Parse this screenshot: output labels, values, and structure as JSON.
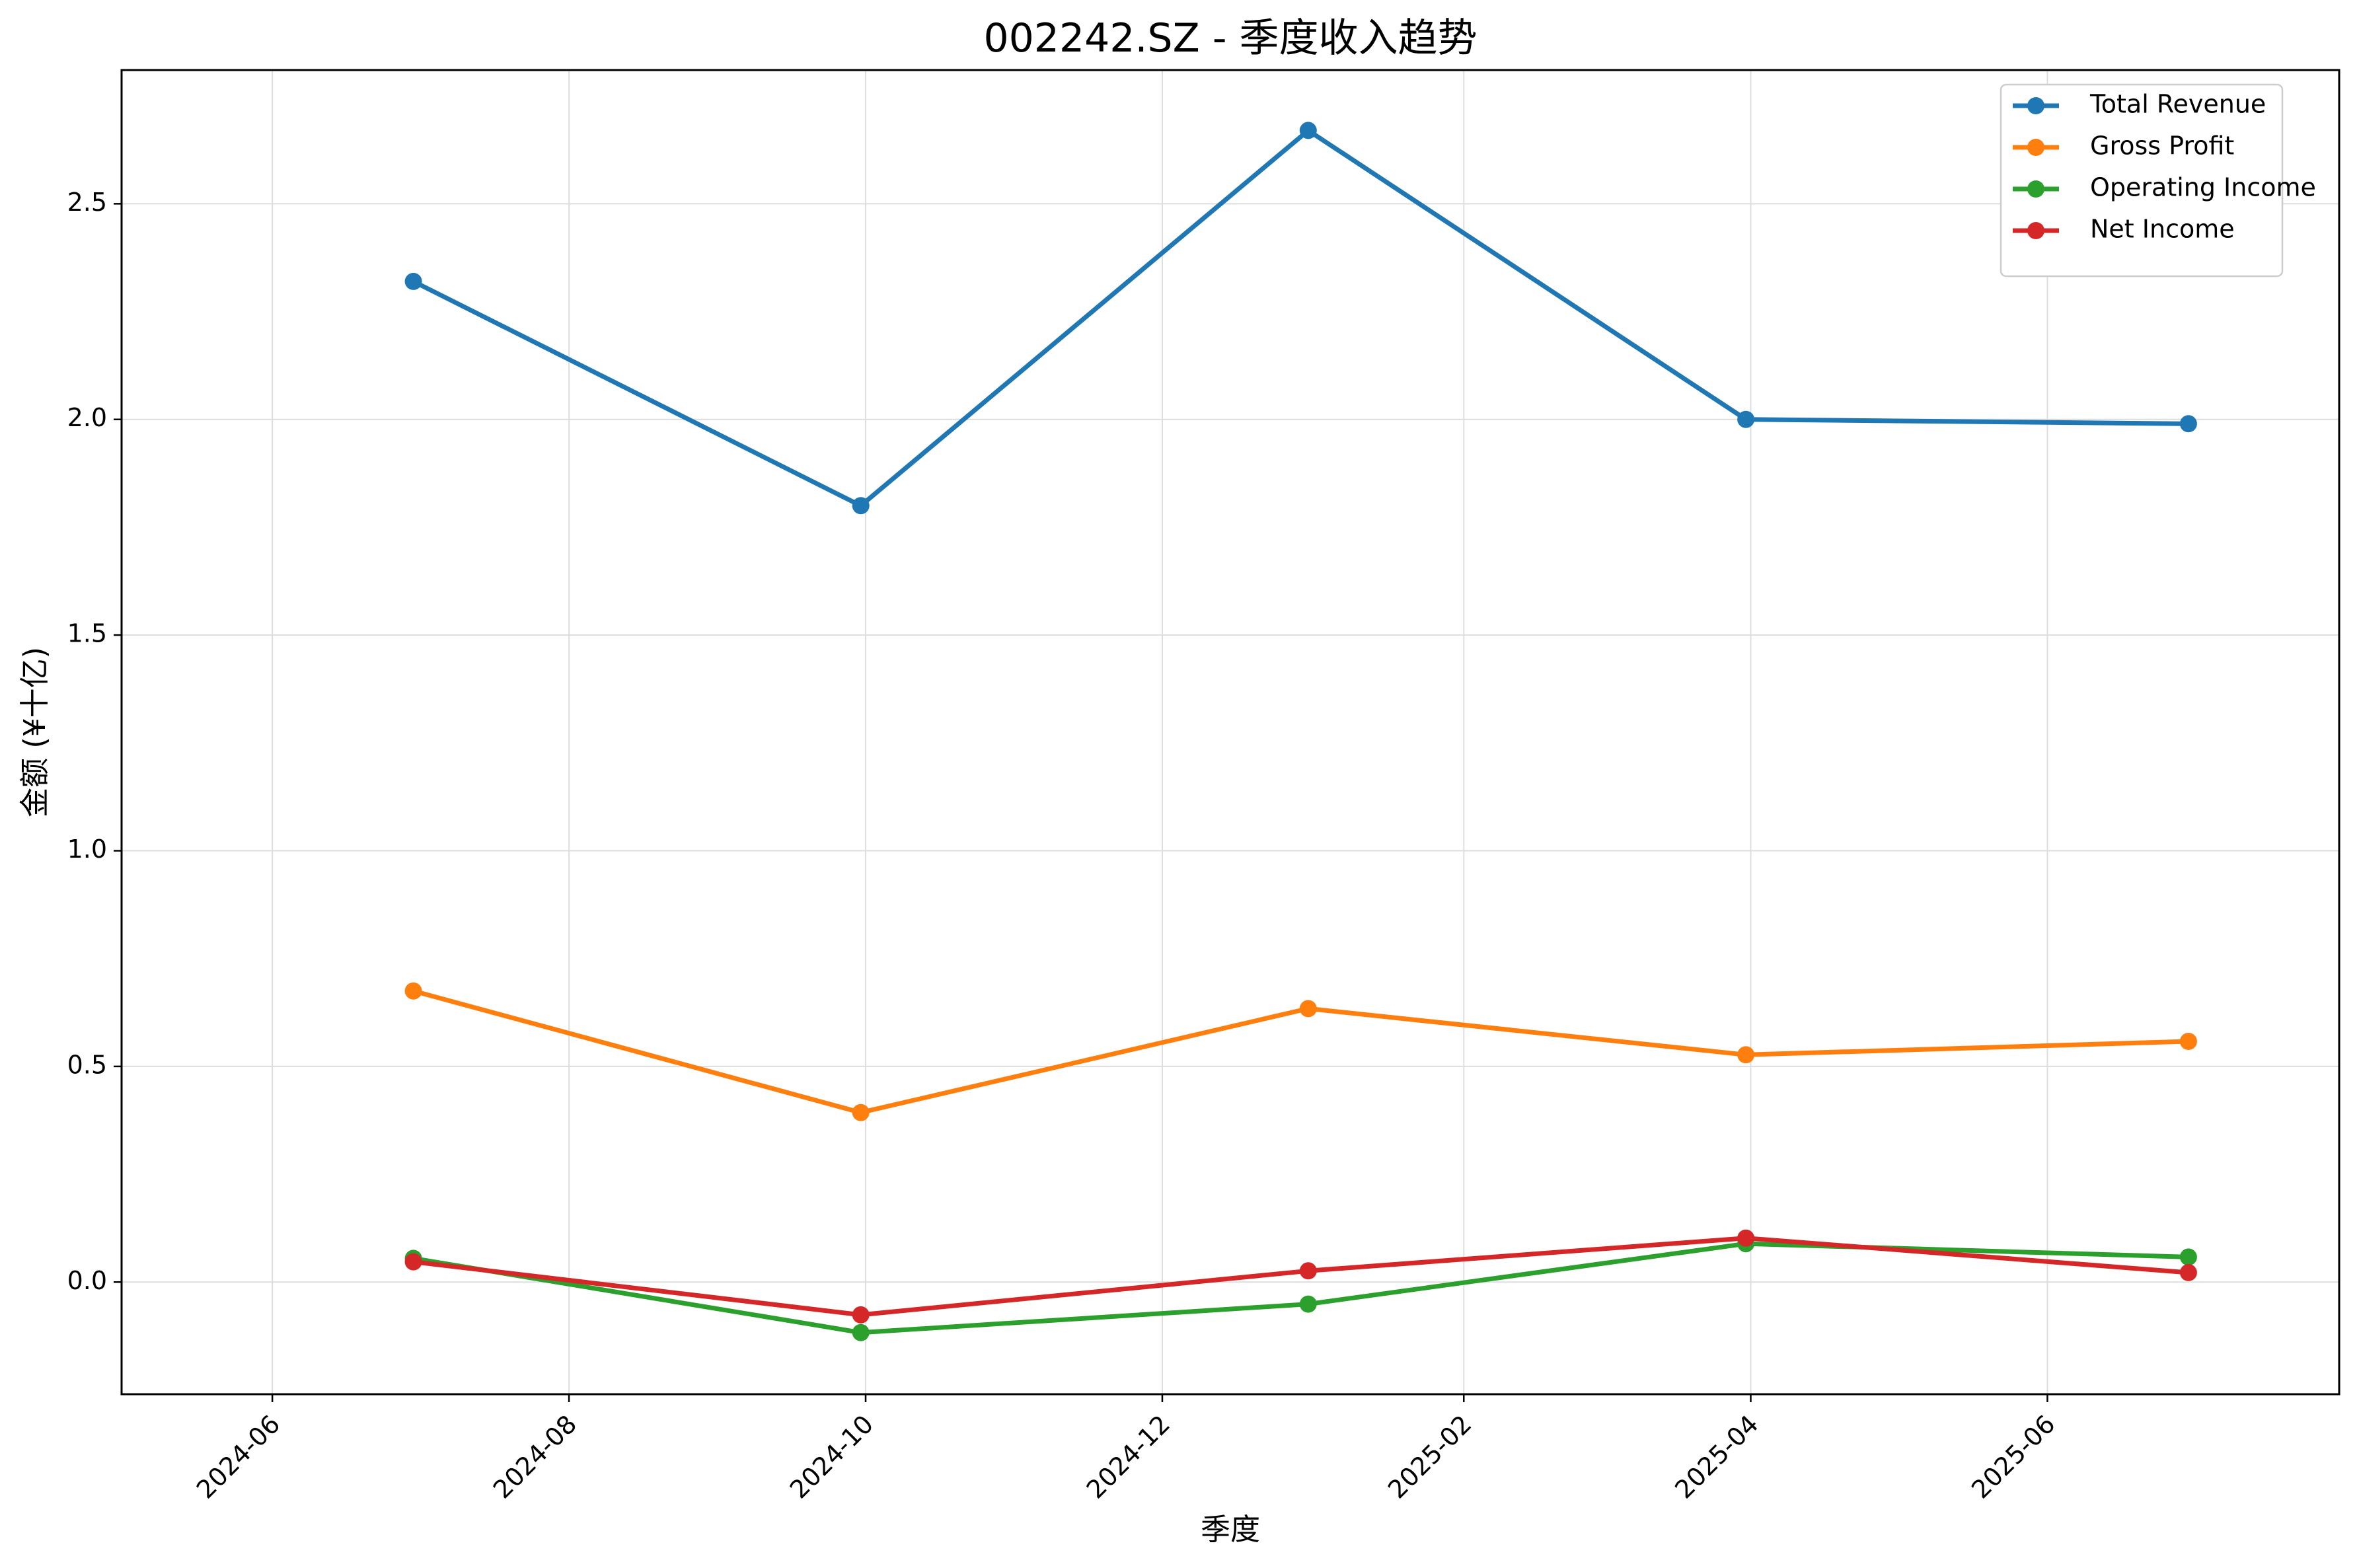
{
  "chart_data": {
    "type": "line",
    "title": "002242.SZ - 季度收入趋势",
    "xlabel": "季度",
    "ylabel": "金额 (¥十亿)",
    "x": [
      "2024-06-30",
      "2024-09-30",
      "2024-12-31",
      "2025-03-31",
      "2025-06-30"
    ],
    "x_ticks": [
      "2024-06",
      "2024-08",
      "2024-10",
      "2024-12",
      "2025-02",
      "2025-04",
      "2025-06"
    ],
    "xlim": [
      "2024-05-01",
      "2025-07-31"
    ],
    "y_ticks": [
      "0.0",
      "0.5",
      "1.0",
      "1.5",
      "2.0",
      "2.5"
    ],
    "ylim": [
      -0.26,
      2.81
    ],
    "grid": true,
    "legend_position": "top-right",
    "series": [
      {
        "name": "Total Revenue",
        "color": "#1f77b4",
        "values": [
          2.32,
          1.8,
          2.67,
          2.0,
          1.99
        ]
      },
      {
        "name": "Gross Profit",
        "color": "#ff7f0e",
        "values": [
          0.675,
          0.393,
          0.634,
          0.527,
          0.558
        ]
      },
      {
        "name": "Operating Income",
        "color": "#2ca02c",
        "values": [
          0.055,
          -0.117,
          -0.051,
          0.089,
          0.058
        ]
      },
      {
        "name": "Net Income",
        "color": "#d62728",
        "values": [
          0.047,
          -0.076,
          0.026,
          0.102,
          0.022
        ]
      }
    ]
  }
}
